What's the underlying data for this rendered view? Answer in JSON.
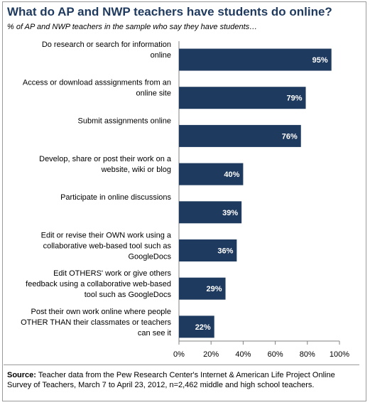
{
  "title": "What do AP and NWP teachers have students do online?",
  "subtitle": "% of AP and NWP teachers in the sample who say they have students…",
  "source_label": "Source:",
  "source_text": "Teacher data from the Pew Research Center's Internet & American Life Project Online Survey of Teachers, March 7 to April 23, 2012, n=2,462 middle and high school teachers.",
  "colors": {
    "bar": "#1f3a5f",
    "bar_label": "#ffffff",
    "title": "#1f3a5f",
    "axis": "#808080"
  },
  "chart_data": {
    "type": "bar",
    "orientation": "horizontal",
    "categories": [
      [
        "Do research or search for information",
        "online"
      ],
      [
        "Access or download asssignments from an",
        "online site"
      ],
      [
        "Submit assignments online"
      ],
      [
        "Develop, share or post their work on a",
        "website, wiki or blog"
      ],
      [
        "Participate in online discussions"
      ],
      [
        "Edit or revise their OWN work using a",
        "collaborative web-based tool such as",
        "GoogleDocs"
      ],
      [
        "Edit OTHERS' work or give others",
        "feedback using a collaborative web-based",
        "tool such as GoogleDocs"
      ],
      [
        "Post their own work online where people",
        "OTHER THAN their classmates or teachers",
        "can see it"
      ]
    ],
    "values": [
      95,
      79,
      76,
      40,
      39,
      36,
      29,
      22
    ],
    "value_labels": [
      "95%",
      "79%",
      "76%",
      "40%",
      "39%",
      "36%",
      "29%",
      "22%"
    ],
    "xlim": [
      0,
      100
    ],
    "xticks": [
      0,
      20,
      40,
      60,
      80,
      100
    ],
    "xtick_labels": [
      "0%",
      "20%",
      "40%",
      "60%",
      "80%",
      "100%"
    ],
    "grid": false,
    "legend": "none"
  }
}
